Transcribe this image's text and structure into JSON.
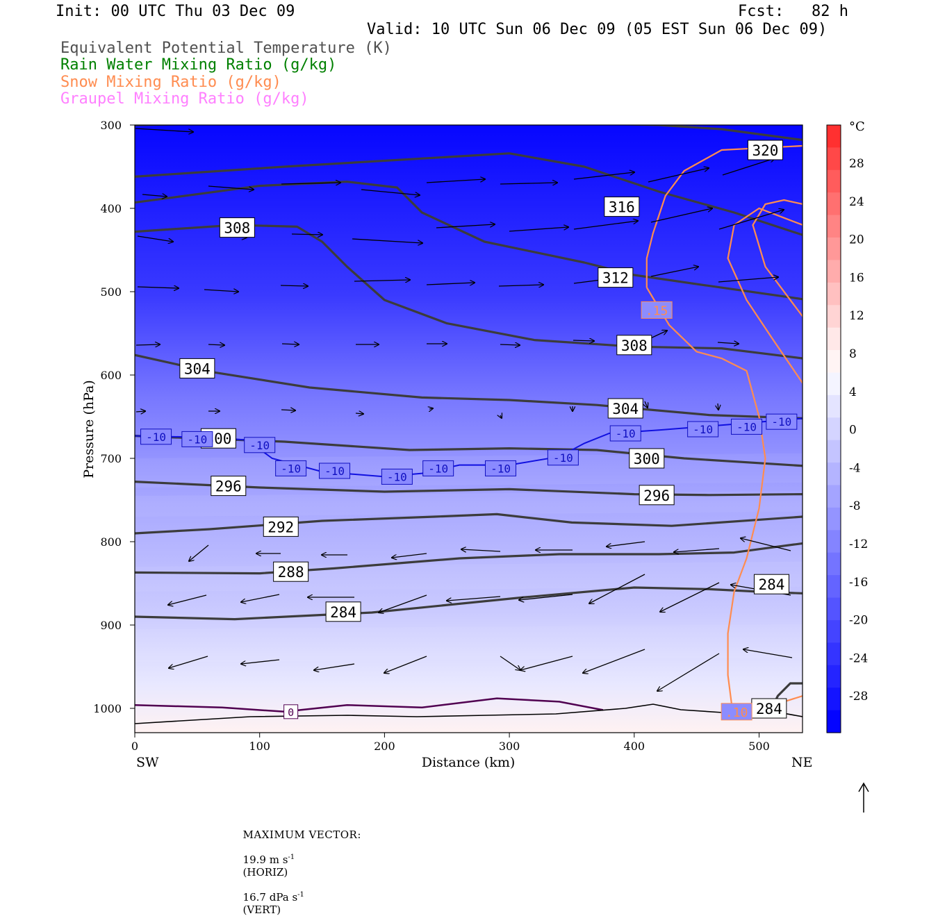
{
  "header": {
    "init": "Init: 00 UTC Thu 03 Dec 09",
    "fcst": "Fcst:   82 h",
    "valid": "Valid: 10 UTC Sun 06 Dec 09 (05 EST Sun 06 Dec 09)"
  },
  "legend": [
    {
      "label": "Equivalent Potential Temperature (K)",
      "color": "#505050"
    },
    {
      "label": "Rain Water Mixing Ratio (g/kg)",
      "color": "#008000"
    },
    {
      "label": "Snow Mixing Ratio (g/kg)",
      "color": "#ff8c50"
    },
    {
      "label": "Graupel Mixing Ratio (g/kg)",
      "color": "#ff80ff"
    }
  ],
  "footer": {
    "max_vector_label": "MAXIMUM VECTOR:",
    "horiz": "19.9 m s",
    "horiz_sup": "-1",
    "horiz_tag": "(HORIZ)",
    "vert": "16.7 dPa s",
    "vert_sup": "-1",
    "vert_tag": "(VERT)"
  },
  "chart_data": {
    "type": "heatmap",
    "description_fields": "Cross-section: temperature shading (°C), theta-e contours (K), -10 °C isotherm, snow mixing ratio contours, wind vectors",
    "xlabel": "Distance (km)",
    "ylabel": "Pressure (hPa)",
    "xlim": [
      0,
      535
    ],
    "ylim": [
      1030,
      300
    ],
    "y_scale": "pressure",
    "x_ticks": [
      "0",
      "100",
      "200",
      "300",
      "400",
      "500"
    ],
    "y_ticks": [
      "300",
      "400",
      "500",
      "600",
      "700",
      "800",
      "900",
      "1000"
    ],
    "x_end_labels": {
      "left": "SW",
      "right": "NE"
    },
    "colorbar": {
      "unit": "°C",
      "ticks": [
        "28",
        "24",
        "20",
        "16",
        "12",
        "8",
        "4",
        "0",
        "-4",
        "-8",
        "-12",
        "-16",
        "-20",
        "-24",
        "-28"
      ],
      "colors_top_to_bottom": [
        "#ff3030",
        "#ff4848",
        "#ff5c5c",
        "#ff7070",
        "#ff8484",
        "#ff9898",
        "#ffacac",
        "#ffc0c0",
        "#ffd4d4",
        "#ffe8e8",
        "#fff4f4",
        "#f4f4ff",
        "#e4e4ff",
        "#d4d4ff",
        "#c4c4ff",
        "#b4b4ff",
        "#a4a4ff",
        "#9494ff",
        "#8484ff",
        "#7474ff",
        "#6464ff",
        "#5454ff",
        "#4444ff",
        "#3434ff",
        "#2424ff",
        "#1414ff",
        "#0404ff"
      ]
    },
    "theta_e_contours": [
      {
        "level": 320,
        "points": [
          [
            0,
            300
          ],
          [
            150,
            296
          ],
          [
            300,
            296
          ],
          [
            420,
            300
          ],
          [
            470,
            305
          ],
          [
            535,
            318
          ]
        ],
        "labels": [
          {
            "x": 505,
            "p": 330
          }
        ]
      },
      {
        "level": 316,
        "points": [
          [
            0,
            362
          ],
          [
            120,
            350
          ],
          [
            300,
            334
          ],
          [
            360,
            350
          ],
          [
            420,
            380
          ],
          [
            480,
            405
          ],
          [
            535,
            432
          ]
        ],
        "labels": [
          {
            "x": 390,
            "p": 398
          }
        ]
      },
      {
        "level": 312,
        "points": [
          [
            0,
            393
          ],
          [
            100,
            373
          ],
          [
            170,
            368
          ],
          [
            210,
            375
          ],
          [
            230,
            405
          ],
          [
            280,
            440
          ],
          [
            360,
            465
          ],
          [
            400,
            480
          ],
          [
            460,
            493
          ],
          [
            535,
            509
          ]
        ],
        "labels": [
          {
            "x": 385,
            "p": 483
          }
        ]
      },
      {
        "level": 308,
        "points": [
          [
            0,
            428
          ],
          [
            80,
            420
          ],
          [
            130,
            422
          ],
          [
            150,
            440
          ],
          [
            170,
            470
          ],
          [
            200,
            510
          ],
          [
            250,
            538
          ],
          [
            320,
            558
          ],
          [
            400,
            566
          ],
          [
            470,
            568
          ],
          [
            535,
            580
          ]
        ],
        "labels": [
          {
            "x": 82,
            "p": 423
          },
          {
            "x": 400,
            "p": 564
          }
        ]
      },
      {
        "level": 304,
        "points": [
          [
            0,
            576
          ],
          [
            60,
            596
          ],
          [
            140,
            615
          ],
          [
            230,
            627
          ],
          [
            300,
            630
          ],
          [
            370,
            636
          ],
          [
            460,
            648
          ],
          [
            535,
            652
          ]
        ],
        "labels": [
          {
            "x": 50,
            "p": 592
          },
          {
            "x": 393,
            "p": 640
          }
        ]
      },
      {
        "level": 300,
        "points": [
          [
            0,
            673
          ],
          [
            120,
            680
          ],
          [
            220,
            690
          ],
          [
            300,
            688
          ],
          [
            370,
            690
          ],
          [
            440,
            700
          ],
          [
            535,
            709
          ]
        ],
        "labels": [
          {
            "x": 67,
            "p": 676
          },
          {
            "x": 410,
            "p": 700
          }
        ]
      },
      {
        "level": 296,
        "points": [
          [
            0,
            728
          ],
          [
            100,
            735
          ],
          [
            200,
            740
          ],
          [
            300,
            737
          ],
          [
            400,
            743
          ],
          [
            460,
            744
          ],
          [
            535,
            743
          ]
        ],
        "labels": [
          {
            "x": 75,
            "p": 733
          },
          {
            "x": 418,
            "p": 744
          }
        ]
      },
      {
        "level": 292,
        "points": [
          [
            0,
            790
          ],
          [
            60,
            785
          ],
          [
            150,
            775
          ],
          [
            240,
            770
          ],
          [
            290,
            767
          ],
          [
            350,
            777
          ],
          [
            430,
            781
          ],
          [
            535,
            770
          ]
        ],
        "labels": [
          {
            "x": 117,
            "p": 782
          }
        ]
      },
      {
        "level": 288,
        "points": [
          [
            0,
            837
          ],
          [
            100,
            838
          ],
          [
            160,
            832
          ],
          [
            260,
            820
          ],
          [
            340,
            815
          ],
          [
            420,
            815
          ],
          [
            480,
            813
          ],
          [
            535,
            802
          ]
        ],
        "labels": [
          {
            "x": 125,
            "p": 836
          }
        ]
      },
      {
        "level": 284,
        "points": [
          [
            0,
            890
          ],
          [
            80,
            893
          ],
          [
            190,
            885
          ],
          [
            310,
            867
          ],
          [
            400,
            855
          ],
          [
            460,
            857
          ],
          [
            500,
            860
          ],
          [
            535,
            862
          ]
        ],
        "labels": [
          {
            "x": 167,
            "p": 884
          },
          {
            "x": 510,
            "p": 851
          }
        ]
      },
      {
        "level": 284,
        "points": [
          [
            500,
            1010
          ],
          [
            510,
            1000
          ],
          [
            515,
            985
          ],
          [
            525,
            970
          ],
          [
            535,
            970
          ]
        ],
        "labels": [
          {
            "x": 508,
            "p": 1000
          }
        ]
      }
    ],
    "isotherm_minus10": {
      "label": "-10",
      "points": [
        [
          0,
          673
        ],
        [
          60,
          675
        ],
        [
          90,
          678
        ],
        [
          110,
          700
        ],
        [
          150,
          716
        ],
        [
          200,
          722
        ],
        [
          230,
          718
        ],
        [
          260,
          708
        ],
        [
          300,
          708
        ],
        [
          340,
          698
        ],
        [
          360,
          682
        ],
        [
          380,
          670
        ],
        [
          420,
          666
        ],
        [
          480,
          659
        ],
        [
          535,
          652
        ]
      ],
      "labels": [
        {
          "x": 17,
          "p": 674
        },
        {
          "x": 50,
          "p": 677
        },
        {
          "x": 100,
          "p": 684
        },
        {
          "x": 125,
          "p": 712
        },
        {
          "x": 160,
          "p": 715
        },
        {
          "x": 210,
          "p": 722
        },
        {
          "x": 243,
          "p": 712
        },
        {
          "x": 293,
          "p": 712
        },
        {
          "x": 343,
          "p": 699
        },
        {
          "x": 393,
          "p": 670
        },
        {
          "x": 455,
          "p": 665
        },
        {
          "x": 490,
          "p": 662
        },
        {
          "x": 518,
          "p": 656
        }
      ]
    },
    "freezing_line": {
      "label": "0",
      "points": [
        [
          0,
          996
        ],
        [
          70,
          999
        ],
        [
          120,
          1004
        ],
        [
          170,
          996
        ],
        [
          230,
          999
        ],
        [
          290,
          988
        ],
        [
          340,
          992
        ],
        [
          375,
          1002
        ]
      ],
      "labels": [
        {
          "x": 125,
          "p": 1004
        }
      ]
    },
    "snow_contours": [
      {
        "level": ".15",
        "points": [
          [
            535,
            325
          ],
          [
            470,
            330
          ],
          [
            440,
            355
          ],
          [
            425,
            385
          ],
          [
            415,
            430
          ],
          [
            410,
            460
          ],
          [
            410,
            495
          ]
        ],
        "labels": [
          {
            "x": 418,
            "p": 522
          }
        ]
      },
      {
        "level": ".15",
        "points": [
          [
            410,
            495
          ],
          [
            428,
            540
          ],
          [
            450,
            572
          ],
          [
            470,
            580
          ],
          [
            490,
            595
          ],
          [
            500,
            650
          ],
          [
            505,
            700
          ],
          [
            500,
            760
          ],
          [
            490,
            820
          ],
          [
            480,
            860
          ],
          [
            475,
            910
          ],
          [
            475,
            960
          ],
          [
            478,
            995
          ]
        ],
        "labels": []
      },
      {
        "level": ".10",
        "points": [
          [
            478,
            995
          ],
          [
            500,
            1002
          ],
          [
            520,
            992
          ],
          [
            535,
            985
          ]
        ],
        "labels": [
          {
            "x": 482,
            "p": 1004
          }
        ]
      },
      {
        "level": ".15",
        "points": [
          [
            535,
            420
          ],
          [
            500,
            400
          ],
          [
            480,
            420
          ],
          [
            475,
            460
          ],
          [
            490,
            510
          ],
          [
            510,
            555
          ],
          [
            535,
            610
          ]
        ],
        "labels": []
      },
      {
        "level": ".15",
        "points": [
          [
            535,
            395
          ],
          [
            520,
            390
          ],
          [
            505,
            395
          ],
          [
            495,
            420
          ],
          [
            505,
            470
          ],
          [
            535,
            530
          ]
        ],
        "labels": []
      }
    ]
  }
}
